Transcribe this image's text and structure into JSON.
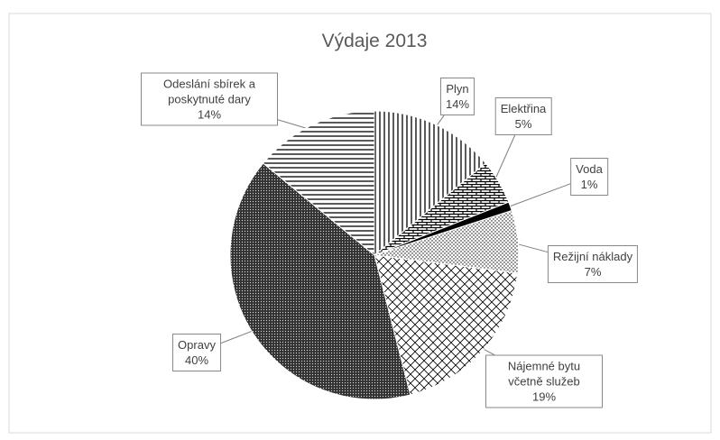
{
  "chart_data": {
    "type": "pie",
    "title": "Výdaje 2013",
    "categories": [
      "Plyn",
      "Elektřina",
      "Voda",
      "Režijní náklady",
      "Nájemné bytu včetně služeb",
      "Opravy",
      "Odeslání sbírek a poskytnuté dary"
    ],
    "values": [
      14,
      5,
      1,
      7,
      19,
      40,
      14
    ],
    "value_labels": [
      "14%",
      "5%",
      "1%",
      "7%",
      "19%",
      "40%",
      "14%"
    ]
  }
}
